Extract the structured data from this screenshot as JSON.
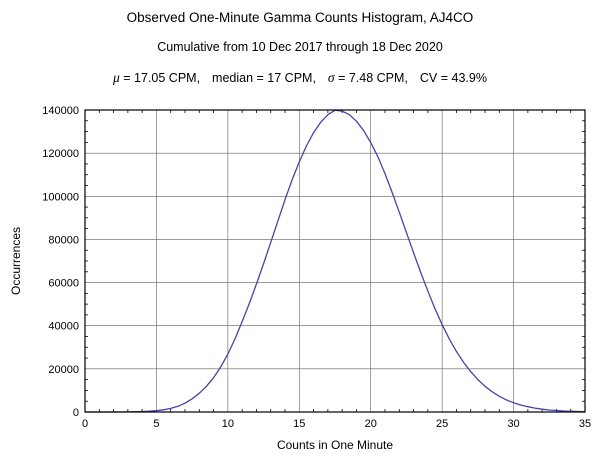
{
  "stats": {
    "mu_symbol": "μ",
    "mu_text": " = 17.05 CPM,",
    "median_text": "median = 17 CPM,",
    "sigma_symbol": "σ",
    "sigma_text": " = 7.48 CPM,",
    "cv_text": "CV = 43.9%"
  },
  "chart_data": {
    "type": "line",
    "title": "Observed One-Minute Gamma Counts Histogram, AJ4CO",
    "subtitle": "Cumulative from 10 Dec 2017 through 18 Dec 2020",
    "xlabel": "Counts in One Minute",
    "ylabel": "Occurrences",
    "xlim": [
      0,
      35
    ],
    "ylim": [
      0,
      140000
    ],
    "x_ticks": [
      0,
      5,
      10,
      15,
      20,
      25,
      30,
      35
    ],
    "x_tick_labels": [
      "0",
      "5",
      "10",
      "15",
      "20",
      "25",
      "30",
      "35"
    ],
    "y_ticks": [
      0,
      20000,
      40000,
      60000,
      80000,
      100000,
      120000,
      140000
    ],
    "y_tick_labels": [
      "0",
      "20000",
      "40000",
      "60000",
      "80000",
      "100000",
      "120000",
      "140000"
    ],
    "x_minor_step": 1,
    "y_minor_step": 5000,
    "grid": true,
    "legend": "none",
    "line_color": "#4545a5",
    "series": [
      {
        "name": "occurrences",
        "x": [
          0,
          1,
          2,
          3,
          3.5,
          4,
          4.5,
          5,
          5.5,
          6,
          6.5,
          7,
          7.5,
          8,
          8.5,
          9,
          9.5,
          10,
          10.5,
          11,
          11.5,
          12,
          12.5,
          13,
          13.5,
          14,
          14.5,
          15,
          15.5,
          16,
          16.5,
          17,
          17.5,
          18,
          18.5,
          19,
          19.5,
          20,
          20.5,
          21,
          21.5,
          22,
          22.5,
          23,
          23.5,
          24,
          24.5,
          25,
          25.5,
          26,
          26.5,
          27,
          27.5,
          28,
          28.5,
          29,
          29.5,
          30,
          30.5,
          31,
          31.5,
          32,
          32.5,
          33,
          33.5,
          34,
          34.5,
          35
        ],
        "y": [
          0,
          0,
          20,
          60,
          120,
          220,
          380,
          620,
          1000,
          1650,
          2650,
          4100,
          6100,
          8700,
          11900,
          15900,
          20900,
          26900,
          33900,
          41900,
          50300,
          59300,
          68800,
          78600,
          88600,
          98400,
          107600,
          116000,
          123300,
          129500,
          134300,
          137800,
          139900,
          139500,
          137800,
          134800,
          130500,
          125000,
          118300,
          110500,
          101800,
          92600,
          83200,
          73800,
          64700,
          56000,
          47900,
          40500,
          33900,
          28100,
          23000,
          18700,
          15000,
          11900,
          9400,
          7300,
          5600,
          4300,
          3250,
          2450,
          1800,
          1320,
          950,
          680,
          470,
          320,
          210,
          130
        ]
      }
    ]
  }
}
